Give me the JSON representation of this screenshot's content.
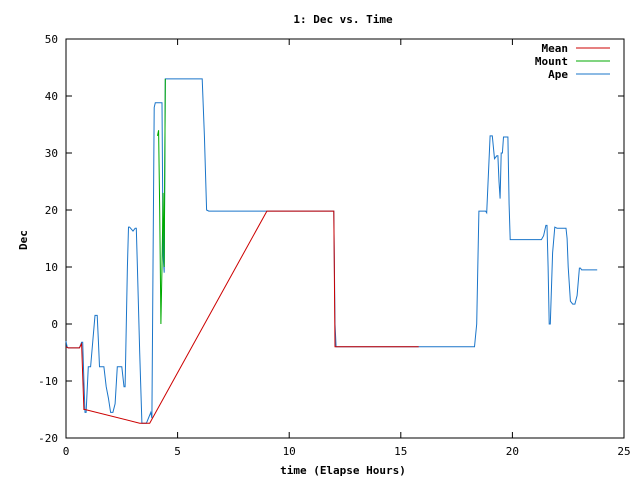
{
  "chart_data": {
    "type": "line",
    "title": "1: Dec vs. Time",
    "xlabel": "time (Elapse Hours)",
    "ylabel": "Dec",
    "xlim": [
      0,
      25
    ],
    "ylim": [
      -20,
      50
    ],
    "xticks": [
      0,
      5,
      10,
      15,
      20,
      25
    ],
    "yticks": [
      -20,
      -10,
      0,
      10,
      20,
      30,
      40,
      50
    ],
    "grid": false,
    "legend_position": "top-right",
    "series": [
      {
        "name": "Mean",
        "color": "#cc0000",
        "x": [
          0.0,
          0.1,
          0.6,
          0.7,
          0.8,
          0.85,
          3.3,
          3.5,
          3.7,
          3.75,
          9.0,
          12.0,
          12.05,
          15.8
        ],
        "y": [
          -4.0,
          -4.2,
          -4.2,
          -3.5,
          -15.0,
          -15.0,
          -17.4,
          -17.4,
          -17.4,
          -17.4,
          19.8,
          19.8,
          -4.0,
          -4.0
        ]
      },
      {
        "name": "Mount",
        "color": "#00aa00",
        "x": [
          4.1,
          4.15,
          4.2,
          4.25,
          4.3,
          4.35,
          4.4,
          4.45
        ],
        "y": [
          33.0,
          34.0,
          20.0,
          0.0,
          10.0,
          23.0,
          10.0,
          43.0
        ]
      },
      {
        "name": "Ape",
        "color": "#1a75c9",
        "x": [
          0.0,
          0.05,
          0.1,
          0.6,
          0.7,
          0.75,
          0.8,
          0.85,
          0.9,
          1.0,
          1.1,
          1.2,
          1.3,
          1.4,
          1.45,
          1.5,
          1.6,
          1.7,
          1.8,
          1.9,
          2.0,
          2.1,
          2.2,
          2.3,
          2.4,
          2.5,
          2.6,
          2.65,
          2.7,
          2.75,
          2.8,
          2.85,
          3.0,
          3.1,
          3.15,
          3.2,
          3.3,
          3.4,
          3.5,
          3.6,
          3.8,
          3.85,
          3.9,
          3.95,
          4.0,
          4.05,
          4.3,
          4.35,
          4.4,
          4.45,
          6.1,
          6.2,
          6.3,
          6.4,
          6.5,
          12.0,
          12.05,
          12.1,
          12.15,
          18.3,
          18.4,
          18.45,
          18.5,
          18.8,
          18.85,
          19.0,
          19.1,
          19.2,
          19.3,
          19.35,
          19.4,
          19.45,
          19.5,
          19.55,
          19.6,
          19.7,
          19.8,
          19.85,
          19.9,
          20.0,
          21.3,
          21.4,
          21.5,
          21.55,
          21.6,
          21.65,
          21.7,
          21.8,
          21.9,
          22.0,
          22.4,
          22.45,
          22.5,
          22.6,
          22.7,
          22.8,
          22.9,
          23.0,
          23.05,
          23.1,
          23.8
        ],
        "y": [
          -3.0,
          -4.0,
          -4.2,
          -4.2,
          -3.2,
          -3.2,
          -10.0,
          -15.5,
          -15.5,
          -7.5,
          -7.5,
          -3.0,
          1.5,
          1.5,
          -3.0,
          -7.5,
          -7.5,
          -7.5,
          -11.0,
          -13.0,
          -15.5,
          -15.5,
          -14.0,
          -7.5,
          -7.5,
          -7.5,
          -11.0,
          -11.0,
          0.0,
          10.0,
          17.0,
          17.0,
          16.3,
          16.8,
          16.8,
          10.0,
          -5.0,
          -17.4,
          -17.4,
          -17.4,
          -15.5,
          -16.5,
          10.0,
          38.0,
          38.8,
          38.8,
          38.8,
          12.0,
          9.0,
          43.0,
          43.0,
          33.0,
          20.0,
          19.8,
          19.8,
          19.8,
          0.0,
          -4.0,
          -4.0,
          -4.0,
          0.0,
          10.0,
          19.8,
          19.8,
          19.5,
          33.0,
          33.0,
          29.0,
          29.5,
          29.5,
          25.0,
          22.0,
          30.0,
          30.0,
          32.8,
          32.8,
          32.8,
          21.0,
          14.8,
          14.8,
          14.8,
          15.5,
          17.3,
          17.3,
          10.0,
          0.0,
          0.0,
          12.5,
          17.0,
          16.8,
          16.8,
          15.0,
          10.0,
          4.0,
          3.5,
          3.5,
          5.0,
          9.8,
          9.8,
          9.5,
          9.5
        ]
      }
    ]
  }
}
